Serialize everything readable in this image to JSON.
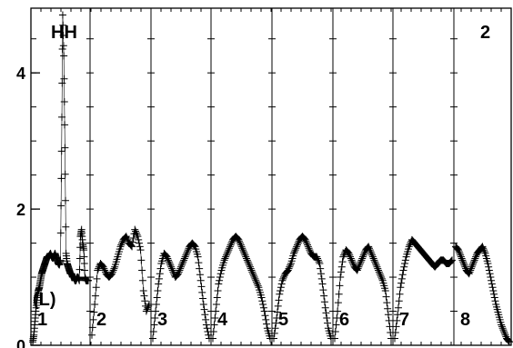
{
  "chart_data": {
    "type": "scatter",
    "title": "HH",
    "panel_label": "2",
    "ylabel": "(L)",
    "ylim": [
      0,
      4.95
    ],
    "y_ticks": [
      0,
      2,
      4
    ],
    "segments": [
      {
        "label": "1",
        "x": [
          0.0,
          0.02,
          0.04,
          0.06,
          0.08,
          0.1,
          0.12,
          0.14,
          0.16,
          0.18,
          0.2,
          0.22,
          0.24,
          0.26,
          0.28,
          0.3,
          0.32,
          0.34,
          0.36,
          0.38,
          0.4,
          0.42,
          0.44,
          0.46,
          0.48,
          0.5,
          0.52,
          0.54,
          0.56,
          0.58,
          0.6,
          0.62,
          0.64,
          0.66,
          0.68,
          0.7,
          0.72,
          0.74,
          0.76,
          0.78,
          0.8,
          0.82,
          0.84,
          0.86,
          0.88,
          0.9,
          0.92,
          0.94,
          0.96,
          0.98,
          1.0
        ],
        "y": [
          0.05,
          0.15,
          0.35,
          0.55,
          0.7,
          0.8,
          0.85,
          0.95,
          1.05,
          1.1,
          1.15,
          1.2,
          1.25,
          1.3,
          1.3,
          1.32,
          1.35,
          1.3,
          1.28,
          1.3,
          1.35,
          1.3,
          1.25,
          1.2,
          1.18,
          1.25,
          2.85,
          4.85,
          4.25,
          2.9,
          1.35,
          1.2,
          1.15,
          1.1,
          1.05,
          1.05,
          1.0,
          1.0,
          0.95,
          0.95,
          1.0,
          1.0,
          0.95,
          1.6,
          1.7,
          1.5,
          1.4,
          1.0,
          0.95,
          0.95,
          0.95
        ]
      },
      {
        "label": "2",
        "x": [
          0.0,
          0.05,
          0.1,
          0.15,
          0.2,
          0.25,
          0.3,
          0.35,
          0.4,
          0.45,
          0.5,
          0.55,
          0.6,
          0.65,
          0.7,
          0.75,
          0.8,
          0.85,
          0.9,
          0.95,
          1.0
        ],
        "y": [
          0.15,
          0.6,
          1.1,
          1.2,
          1.15,
          1.05,
          1.0,
          1.05,
          1.15,
          1.3,
          1.45,
          1.55,
          1.6,
          1.5,
          1.45,
          1.7,
          1.6,
          1.4,
          0.8,
          0.5,
          0.6
        ]
      },
      {
        "label": "3",
        "x": [
          0.0,
          0.05,
          0.1,
          0.15,
          0.2,
          0.25,
          0.3,
          0.35,
          0.4,
          0.45,
          0.5,
          0.55,
          0.6,
          0.65,
          0.7,
          0.75,
          0.8,
          0.85,
          0.9,
          0.95,
          1.0
        ],
        "y": [
          0.1,
          0.5,
          0.9,
          1.2,
          1.35,
          1.3,
          1.2,
          1.1,
          1.0,
          1.05,
          1.15,
          1.25,
          1.35,
          1.45,
          1.5,
          1.45,
          1.3,
          0.95,
          0.6,
          0.3,
          0.1
        ]
      },
      {
        "label": "4",
        "x": [
          0.0,
          0.05,
          0.1,
          0.15,
          0.2,
          0.25,
          0.3,
          0.35,
          0.4,
          0.45,
          0.5,
          0.55,
          0.6,
          0.65,
          0.7,
          0.75,
          0.8,
          0.85,
          0.9,
          0.95,
          1.0
        ],
        "y": [
          0.1,
          0.5,
          0.9,
          1.1,
          1.25,
          1.35,
          1.45,
          1.55,
          1.6,
          1.55,
          1.45,
          1.35,
          1.25,
          1.15,
          1.05,
          0.95,
          0.85,
          0.7,
          0.5,
          0.25,
          0.1
        ]
      },
      {
        "label": "5",
        "x": [
          0.0,
          0.05,
          0.1,
          0.15,
          0.2,
          0.25,
          0.3,
          0.35,
          0.4,
          0.45,
          0.5,
          0.55,
          0.6,
          0.65,
          0.7,
          0.75,
          0.8,
          0.85,
          0.9,
          0.95,
          1.0
        ],
        "y": [
          0.1,
          0.4,
          0.75,
          0.95,
          1.05,
          1.1,
          1.2,
          1.35,
          1.45,
          1.55,
          1.6,
          1.55,
          1.45,
          1.35,
          1.3,
          1.3,
          1.2,
          0.9,
          0.55,
          0.25,
          0.1
        ]
      },
      {
        "label": "6",
        "x": [
          0.0,
          0.05,
          0.1,
          0.15,
          0.2,
          0.25,
          0.3,
          0.35,
          0.4,
          0.45,
          0.5,
          0.55,
          0.6,
          0.65,
          0.7,
          0.75,
          0.8,
          0.85,
          0.9,
          0.95,
          1.0
        ],
        "y": [
          0.1,
          0.5,
          1.0,
          1.3,
          1.4,
          1.35,
          1.25,
          1.15,
          1.1,
          1.2,
          1.3,
          1.4,
          1.45,
          1.35,
          1.25,
          1.15,
          1.05,
          0.95,
          0.8,
          0.45,
          0.1
        ]
      },
      {
        "label": "7",
        "x": [
          0.0,
          0.05,
          0.1,
          0.15,
          0.2,
          0.25,
          0.3,
          0.35,
          0.4,
          0.45,
          0.5,
          0.55,
          0.6,
          0.65,
          0.7,
          0.75,
          0.8,
          0.85,
          0.9,
          0.95,
          1.0
        ],
        "y": [
          0.1,
          0.45,
          0.85,
          1.1,
          1.3,
          1.45,
          1.55,
          1.5,
          1.45,
          1.4,
          1.35,
          1.3,
          1.25,
          1.2,
          1.15,
          1.2,
          1.25,
          1.25,
          1.2,
          1.2,
          1.25
        ]
      },
      {
        "label": "8",
        "x": [
          0.0,
          0.05,
          0.1,
          0.15,
          0.2,
          0.25,
          0.3,
          0.35,
          0.4,
          0.45,
          0.5,
          0.55,
          0.6,
          0.65,
          0.7,
          0.75,
          0.8,
          0.85,
          0.9,
          0.95,
          1.0
        ],
        "y": [
          1.45,
          1.4,
          1.3,
          1.2,
          1.1,
          1.05,
          1.15,
          1.25,
          1.35,
          1.4,
          1.45,
          1.35,
          1.2,
          1.0,
          0.8,
          0.6,
          0.45,
          0.3,
          0.2,
          0.1,
          0.05
        ]
      }
    ],
    "grid": true
  }
}
